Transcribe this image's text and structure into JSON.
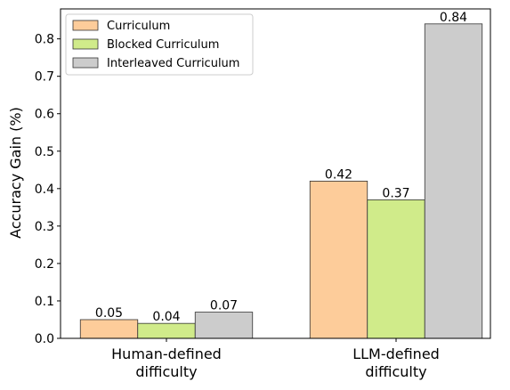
{
  "chart_data": {
    "type": "bar",
    "categories": [
      "Human-defined\ndifficulty",
      "LLM-defined\ndifficulty"
    ],
    "series": [
      {
        "name": "Curriculum",
        "values": [
          0.05,
          0.42
        ],
        "color": "#FDCC9A"
      },
      {
        "name": "Blocked Curriculum",
        "values": [
          0.04,
          0.37
        ],
        "color": "#D0EB8A"
      },
      {
        "name": "Interleaved Curriculum",
        "values": [
          0.07,
          0.84
        ],
        "color": "#CCCCCC"
      }
    ],
    "data_labels": [
      [
        "0.05",
        "0.42"
      ],
      [
        "0.04",
        "0.37"
      ],
      [
        "0.07",
        "0.84"
      ]
    ],
    "ylabel": "Accuracy Gain (%)",
    "xlabel": "",
    "title": "",
    "ylim": [
      0,
      0.88
    ],
    "yticks": [
      0.0,
      0.1,
      0.2,
      0.3,
      0.4,
      0.5,
      0.6,
      0.7,
      0.8
    ],
    "ytick_labels": [
      "0.0",
      "0.1",
      "0.2",
      "0.3",
      "0.4",
      "0.5",
      "0.6",
      "0.7",
      "0.8"
    ],
    "grid": false,
    "legend_position": "top-left"
  }
}
